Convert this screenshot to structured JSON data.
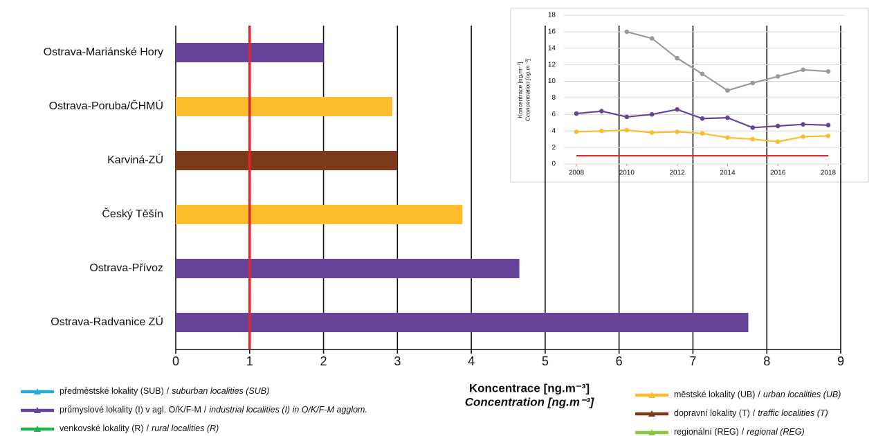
{
  "chart_data": [
    {
      "type": "bar",
      "orientation": "horizontal",
      "categories": [
        "Ostrava-Mariánské Hory",
        "Ostrava-Poruba/ČHMÚ",
        "Karviná-ZÚ",
        "Český Těšín",
        "Ostrava-Přívoz",
        "Ostrava-Radvanice ZÚ"
      ],
      "values": [
        2.0,
        2.93,
        3.0,
        3.88,
        4.65,
        7.75
      ],
      "colors": [
        "#65449a",
        "#fbbc2d",
        "#7b3b1a",
        "#fbbc2d",
        "#65449a",
        "#65449a"
      ],
      "xlim": [
        0,
        9
      ],
      "xticks": [
        0,
        1,
        2,
        3,
        4,
        5,
        6,
        7,
        8,
        9
      ],
      "grid": true,
      "reference_line": {
        "value": 1,
        "color": "#e3262b"
      },
      "x_label": "Koncentrace [ng.m⁻³]",
      "x_label_en": "Concentration [ng.m⁻³]",
      "legend_separator": "/",
      "legend": [
        {
          "name": "předměstské lokality (SUB)",
          "name_en": "suburban localities (SUB)",
          "color": "#29abe2"
        },
        {
          "name": "průmyslové lokality (I) v agl. O/K/F-M",
          "name_en": "industrial localities (I) in O/K/F-M agglom.",
          "color": "#65449a"
        },
        {
          "name": "venkovské lokality (R)",
          "name_en": "rural localities (R)",
          "color": "#22b14c"
        },
        {
          "name": "městské lokality (UB)",
          "name_en": "urban localities (UB)",
          "color": "#fbbc2d"
        },
        {
          "name": "dopravní lokality (T)",
          "name_en": "traffic localities (T)",
          "color": "#7b3b1a"
        },
        {
          "name": "regionální (REG)",
          "name_en": "regional (REG)",
          "color": "#8dc63f"
        }
      ]
    },
    {
      "type": "line",
      "x": [
        2008,
        2009,
        2010,
        2011,
        2012,
        2013,
        2014,
        2015,
        2016,
        2017,
        2018
      ],
      "xlim": [
        2008,
        2018
      ],
      "xticks": [
        2008,
        2010,
        2012,
        2014,
        2016,
        2018
      ],
      "ylim": [
        0,
        18
      ],
      "yticks": [
        0,
        2,
        4,
        6,
        8,
        10,
        12,
        14,
        16,
        18
      ],
      "grid": true,
      "y_label": "Koncentrace [ng.m⁻³]",
      "y_label_en": "Cconcentration [ng.m⁻³]",
      "series": [
        {
          "color": "#9a9a9a",
          "markers": true,
          "values": [
            null,
            null,
            16.0,
            15.2,
            12.8,
            10.9,
            8.9,
            9.8,
            10.6,
            11.4,
            11.2
          ]
        },
        {
          "color": "#65449a",
          "markers": true,
          "values": [
            6.1,
            6.4,
            5.7,
            6.0,
            6.6,
            5.5,
            5.6,
            4.4,
            4.6,
            4.8,
            4.7
          ]
        },
        {
          "color": "#fbbc2d",
          "markers": true,
          "values": [
            3.9,
            4.0,
            4.1,
            3.8,
            3.9,
            3.7,
            3.2,
            3.0,
            2.7,
            3.3,
            3.4
          ]
        },
        {
          "color": "#e3262b",
          "markers": false,
          "values": [
            1,
            1,
            1,
            1,
            1,
            1,
            1,
            1,
            1,
            1,
            1
          ]
        }
      ]
    }
  ]
}
